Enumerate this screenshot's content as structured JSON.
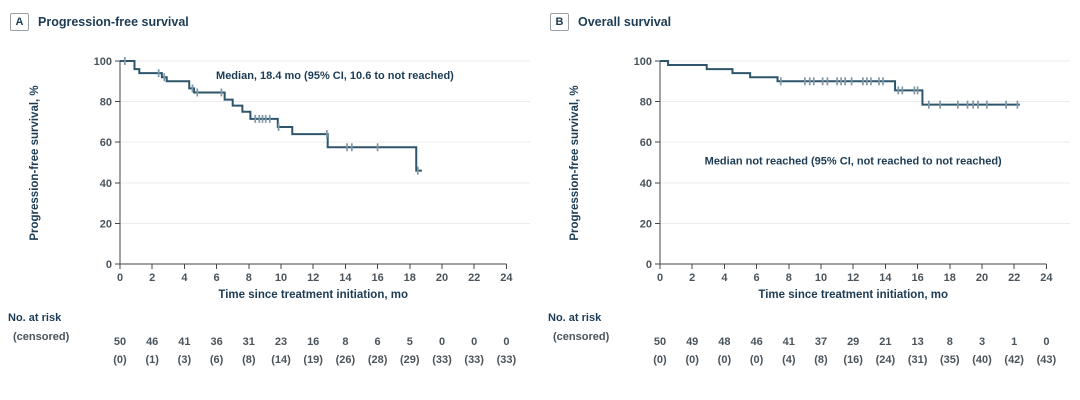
{
  "figure_type": "kaplan_meier_two_panel",
  "chart_data": [
    {
      "type": "line",
      "km_type": "step",
      "panel_label": "A",
      "title": "Progression-free survival",
      "annotation": "Median, 18.4 mo (95% CI, 10.6 to not reached)",
      "annotation_x": 13.35,
      "annotation_y": 93,
      "xlabel": "Time since treatment initiation, mo",
      "ylabel": "Progression-free survival, %",
      "xlim": [
        0,
        24
      ],
      "ylim": [
        0,
        100
      ],
      "xticks": [
        0,
        2,
        4,
        6,
        8,
        10,
        12,
        14,
        16,
        18,
        20,
        22,
        24
      ],
      "yticks": [
        0,
        20,
        40,
        60,
        80,
        100
      ],
      "grid": "horizontal",
      "steps": [
        [
          0,
          100
        ],
        [
          0.9,
          96
        ],
        [
          1.2,
          94
        ],
        [
          2.6,
          92
        ],
        [
          2.9,
          90
        ],
        [
          4.3,
          86.5
        ],
        [
          4.6,
          84.5
        ],
        [
          6.5,
          81
        ],
        [
          7.0,
          78
        ],
        [
          7.6,
          75
        ],
        [
          8.1,
          71.5
        ],
        [
          9.8,
          67.5
        ],
        [
          10.7,
          64
        ],
        [
          12.9,
          57.5
        ],
        [
          18.4,
          46
        ]
      ],
      "curve_end": 18.75,
      "censor_marks": [
        [
          0.3,
          100
        ],
        [
          2.4,
          94
        ],
        [
          2.75,
          92
        ],
        [
          4.5,
          86.5
        ],
        [
          4.8,
          84.5
        ],
        [
          6.3,
          84.5
        ],
        [
          8.4,
          71.5
        ],
        [
          8.65,
          71.5
        ],
        [
          8.85,
          71.5
        ],
        [
          9.05,
          71.5
        ],
        [
          9.3,
          71.5
        ],
        [
          9.85,
          67.5
        ],
        [
          12.85,
          64
        ],
        [
          14.1,
          57.5
        ],
        [
          14.4,
          57.5
        ],
        [
          16.0,
          57.5
        ],
        [
          18.5,
          46
        ]
      ],
      "risk_header": "No. at risk",
      "censored_header": "(censored)",
      "risk_times": [
        0,
        2,
        4,
        6,
        8,
        10,
        12,
        14,
        16,
        18,
        20,
        22,
        24
      ],
      "at_risk": [
        50,
        46,
        41,
        36,
        31,
        23,
        16,
        8,
        6,
        5,
        0,
        0,
        0
      ],
      "censored": [
        0,
        1,
        3,
        6,
        8,
        14,
        19,
        26,
        28,
        29,
        33,
        33,
        33
      ]
    },
    {
      "type": "line",
      "km_type": "step",
      "panel_label": "B",
      "title": "Overall survival",
      "annotation": "Median not reached (95% CI, not reached to not reached)",
      "annotation_x": 12.0,
      "annotation_y": 51,
      "xlabel": "Time since treatment initiation, mo",
      "ylabel": "Progression-free survival, %",
      "xlim": [
        0,
        24
      ],
      "ylim": [
        0,
        100
      ],
      "xticks": [
        0,
        2,
        4,
        6,
        8,
        10,
        12,
        14,
        16,
        18,
        20,
        22,
        24
      ],
      "yticks": [
        0,
        20,
        40,
        60,
        80,
        100
      ],
      "grid": "horizontal",
      "steps": [
        [
          0,
          100
        ],
        [
          0.5,
          98
        ],
        [
          2.9,
          96
        ],
        [
          4.5,
          94
        ],
        [
          5.6,
          92
        ],
        [
          7.3,
          90
        ],
        [
          14.6,
          85.5
        ],
        [
          16.3,
          78.5
        ]
      ],
      "curve_end": 22.35,
      "censor_marks": [
        [
          7.5,
          90
        ],
        [
          9.0,
          90
        ],
        [
          9.3,
          90
        ],
        [
          9.55,
          90
        ],
        [
          10.1,
          90
        ],
        [
          10.4,
          90
        ],
        [
          11.0,
          90
        ],
        [
          11.25,
          90
        ],
        [
          11.5,
          90
        ],
        [
          11.9,
          90
        ],
        [
          12.6,
          90
        ],
        [
          12.85,
          90
        ],
        [
          13.1,
          90
        ],
        [
          13.6,
          90
        ],
        [
          13.85,
          90
        ],
        [
          14.8,
          85.5
        ],
        [
          15.05,
          85.5
        ],
        [
          15.8,
          85.5
        ],
        [
          16.0,
          85.5
        ],
        [
          16.7,
          78.5
        ],
        [
          17.4,
          78.5
        ],
        [
          18.5,
          78.5
        ],
        [
          19.1,
          78.5
        ],
        [
          19.45,
          78.5
        ],
        [
          19.75,
          78.5
        ],
        [
          20.3,
          78.5
        ],
        [
          21.5,
          78.5
        ],
        [
          22.2,
          78.5
        ]
      ],
      "risk_header": "No. at risk",
      "censored_header": "(censored)",
      "risk_times": [
        0,
        2,
        4,
        6,
        8,
        10,
        12,
        14,
        16,
        18,
        20,
        22,
        24
      ],
      "at_risk": [
        50,
        49,
        48,
        46,
        41,
        37,
        29,
        21,
        13,
        8,
        3,
        1,
        0
      ],
      "censored": [
        0,
        0,
        0,
        0,
        4,
        8,
        16,
        24,
        31,
        35,
        40,
        42,
        43
      ]
    }
  ]
}
